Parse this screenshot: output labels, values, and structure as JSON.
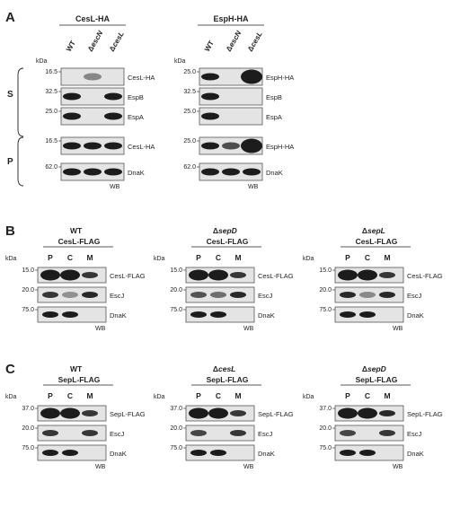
{
  "panels": {
    "A": {
      "letter": "A",
      "kda_label": "kDa",
      "wb_label": "WB",
      "group_S": "S",
      "group_P": "P",
      "blots": [
        {
          "title": "CesL-HA",
          "lanes": [
            "WT",
            "escN",
            "cesL"
          ],
          "lane_delta": [
            false,
            true,
            true
          ],
          "rows": [
            {
              "group": "S",
              "marker": "16.5",
              "label": "CesL-HA"
            },
            {
              "group": "S",
              "marker": "32.5",
              "label": "EspB"
            },
            {
              "group": "S",
              "marker": "25.0",
              "label": "EspA"
            },
            {
              "group": "P",
              "marker": "16.5",
              "label": "CesL-HA"
            },
            {
              "group": "P",
              "marker": "62.0",
              "label": "DnaK"
            }
          ]
        },
        {
          "title": "EspH-HA",
          "lanes": [
            "WT",
            "escN",
            "cesL"
          ],
          "lane_delta": [
            false,
            true,
            true
          ],
          "rows": [
            {
              "group": "S",
              "marker": "25.0",
              "label": "EspH-HA"
            },
            {
              "group": "S",
              "marker": "32.5",
              "label": "EspB"
            },
            {
              "group": "S",
              "marker": "25.0",
              "label": "EspA"
            },
            {
              "group": "P",
              "marker": "25.0",
              "label": "EspH-HA"
            },
            {
              "group": "P",
              "marker": "62.0",
              "label": "DnaK"
            }
          ]
        }
      ]
    },
    "B": {
      "letter": "B",
      "kda_label": "kDa",
      "wb_label": "WB",
      "lanes": [
        "P",
        "C",
        "M"
      ],
      "blots": [
        {
          "strain": "WT",
          "strain_delta": false,
          "construct": "CesL-FLAG",
          "rows": [
            {
              "marker": "15.0",
              "label": "CesL-FLAG"
            },
            {
              "marker": "20.0",
              "label": "EscJ"
            },
            {
              "marker": "75.0",
              "label": "DnaK"
            }
          ]
        },
        {
          "strain": "sepD",
          "strain_delta": true,
          "construct": "CesL-FLAG",
          "rows": [
            {
              "marker": "15.0",
              "label": "CesL-FLAG"
            },
            {
              "marker": "20.0",
              "label": "EscJ"
            },
            {
              "marker": "75.0",
              "label": "DnaK"
            }
          ]
        },
        {
          "strain": "sepL",
          "strain_delta": true,
          "construct": "CesL-FLAG",
          "rows": [
            {
              "marker": "15.0",
              "label": "CesL-FLAG"
            },
            {
              "marker": "20.0",
              "label": "EscJ"
            },
            {
              "marker": "75.0",
              "label": "DnaK"
            }
          ]
        }
      ]
    },
    "C": {
      "letter": "C",
      "kda_label": "kDa",
      "wb_label": "WB",
      "lanes": [
        "P",
        "C",
        "M"
      ],
      "blots": [
        {
          "strain": "WT",
          "strain_delta": false,
          "construct": "SepL-FLAG",
          "rows": [
            {
              "marker": "37.0",
              "label": "SepL-FLAG"
            },
            {
              "marker": "20.0",
              "label": "EscJ"
            },
            {
              "marker": "75.0",
              "label": "DnaK"
            }
          ]
        },
        {
          "strain": "cesL",
          "strain_delta": true,
          "construct": "SepL-FLAG",
          "rows": [
            {
              "marker": "37.0",
              "label": "SepL-FLAG"
            },
            {
              "marker": "20.0",
              "label": "EscJ"
            },
            {
              "marker": "75.0",
              "label": "DnaK"
            }
          ]
        },
        {
          "strain": "sepD",
          "strain_delta": true,
          "construct": "SepL-FLAG",
          "rows": [
            {
              "marker": "37.0",
              "label": "SepL-FLAG"
            },
            {
              "marker": "20.0",
              "label": "EscJ"
            },
            {
              "marker": "75.0",
              "label": "DnaK"
            }
          ]
        }
      ]
    }
  }
}
